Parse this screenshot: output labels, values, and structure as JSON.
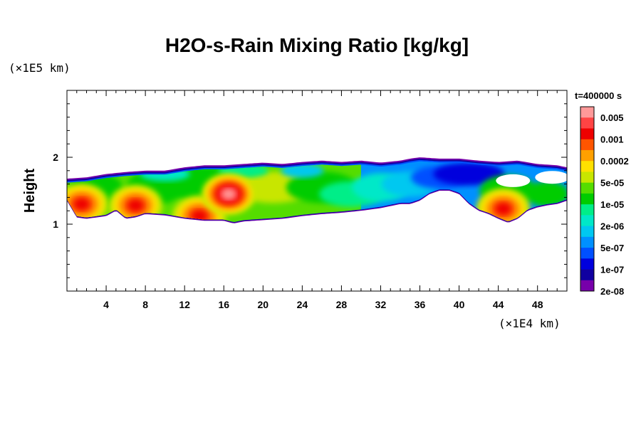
{
  "chart_data": {
    "type": "heatmap",
    "title": "H2O-s-Rain Mixing Ratio [kg/kg]",
    "ylabel": "Height",
    "x_unit": "(×1E4 km)",
    "y_unit": "(×1E5 km)",
    "time_label": "t=400000 s",
    "xlim": [
      0,
      51
    ],
    "ylim": [
      0,
      3
    ],
    "x_ticks": [
      4,
      8,
      12,
      16,
      20,
      24,
      28,
      32,
      36,
      40,
      44,
      48
    ],
    "y_ticks": [
      1,
      2
    ],
    "colorbar": {
      "labels": [
        "0.005",
        "0.001",
        "0.0002",
        "5e-05",
        "1e-05",
        "2e-06",
        "5e-07",
        "1e-07",
        "2e-08"
      ],
      "colors": [
        "#ff9999",
        "#ff4444",
        "#ee0000",
        "#ff5500",
        "#ffa000",
        "#ffe000",
        "#c8e600",
        "#55dd00",
        "#00cc00",
        "#00ee88",
        "#00e8c8",
        "#00c8f0",
        "#0090ff",
        "#0050ff",
        "#0000dd",
        "#1000a0",
        "#7700aa"
      ]
    },
    "cloud_band": {
      "bottom": [
        [
          0,
          1.35
        ],
        [
          1,
          1.1
        ],
        [
          2,
          1.08
        ],
        [
          4,
          1.12
        ],
        [
          5,
          1.2
        ],
        [
          6,
          1.08
        ],
        [
          7,
          1.1
        ],
        [
          8,
          1.15
        ],
        [
          10,
          1.13
        ],
        [
          12,
          1.08
        ],
        [
          14,
          1.05
        ],
        [
          16,
          1.05
        ],
        [
          17,
          1.01
        ],
        [
          18,
          1.04
        ],
        [
          20,
          1.06
        ],
        [
          22,
          1.08
        ],
        [
          24,
          1.12
        ],
        [
          26,
          1.15
        ],
        [
          28,
          1.17
        ],
        [
          30,
          1.2
        ],
        [
          32,
          1.24
        ],
        [
          33,
          1.27
        ],
        [
          34,
          1.3
        ],
        [
          35,
          1.3
        ],
        [
          36,
          1.35
        ],
        [
          37,
          1.45
        ],
        [
          38,
          1.5
        ],
        [
          39,
          1.5
        ],
        [
          40,
          1.45
        ],
        [
          41,
          1.3
        ],
        [
          42,
          1.2
        ],
        [
          43,
          1.15
        ],
        [
          44,
          1.08
        ],
        [
          45,
          1.02
        ],
        [
          46,
          1.08
        ],
        [
          47,
          1.2
        ],
        [
          48,
          1.25
        ],
        [
          49,
          1.28
        ],
        [
          50,
          1.3
        ],
        [
          51,
          1.35
        ]
      ],
      "top": [
        [
          0,
          1.68
        ],
        [
          2,
          1.7
        ],
        [
          4,
          1.75
        ],
        [
          6,
          1.78
        ],
        [
          8,
          1.8
        ],
        [
          10,
          1.8
        ],
        [
          12,
          1.85
        ],
        [
          14,
          1.88
        ],
        [
          16,
          1.88
        ],
        [
          18,
          1.9
        ],
        [
          20,
          1.92
        ],
        [
          22,
          1.9
        ],
        [
          24,
          1.93
        ],
        [
          26,
          1.95
        ],
        [
          28,
          1.93
        ],
        [
          30,
          1.95
        ],
        [
          32,
          1.92
        ],
        [
          34,
          1.95
        ],
        [
          35,
          1.98
        ],
        [
          36,
          2.0
        ],
        [
          38,
          1.98
        ],
        [
          40,
          1.98
        ],
        [
          42,
          1.95
        ],
        [
          44,
          1.93
        ],
        [
          46,
          1.95
        ],
        [
          48,
          1.9
        ],
        [
          50,
          1.88
        ],
        [
          51,
          1.85
        ]
      ],
      "cores": [
        {
          "x": 1.5,
          "y": 1.3,
          "level": "0.001"
        },
        {
          "x": 7.0,
          "y": 1.28,
          "level": "0.001"
        },
        {
          "x": 13.5,
          "y": 1.12,
          "level": "0.001"
        },
        {
          "x": 16.5,
          "y": 1.45,
          "level": "0.005"
        },
        {
          "x": 44.5,
          "y": 1.23,
          "level": "0.001"
        }
      ],
      "gaps": [
        {
          "x": 45.5,
          "y": 1.65
        },
        {
          "x": 49.5,
          "y": 1.7
        }
      ]
    }
  }
}
